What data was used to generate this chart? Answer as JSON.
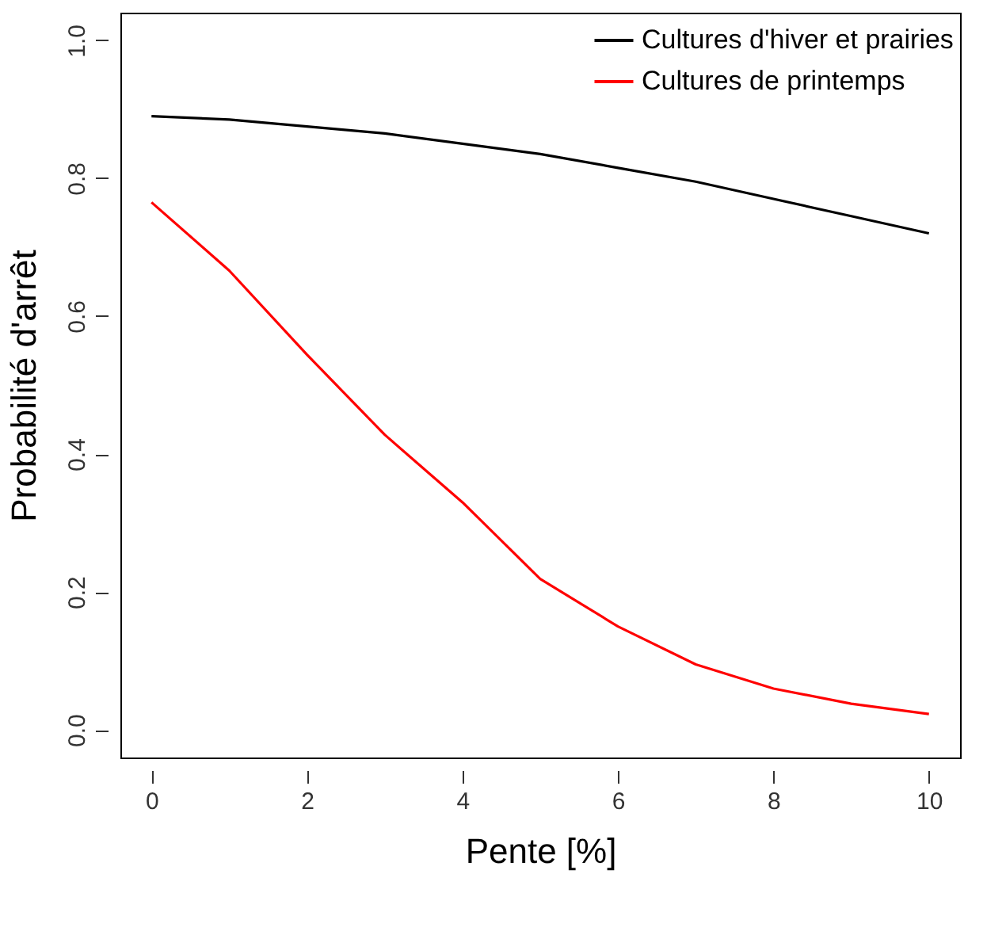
{
  "chart_data": {
    "type": "line",
    "xlabel": "Pente [%]",
    "ylabel": "Probabilité d'arrêt",
    "x": [
      0,
      1,
      2,
      3,
      4,
      5,
      6,
      7,
      8,
      9,
      10
    ],
    "series": [
      {
        "name": "Cultures d'hiver et prairies",
        "color": "#000000",
        "values": [
          0.89,
          0.885,
          0.875,
          0.865,
          0.85,
          0.835,
          0.815,
          0.795,
          0.77,
          0.745,
          0.72
        ]
      },
      {
        "name": "Cultures de printemps",
        "color": "#ff0000",
        "values": [
          0.765,
          0.666,
          0.544,
          0.428,
          0.33,
          0.219,
          0.15,
          0.095,
          0.06,
          0.038,
          0.023
        ]
      }
    ],
    "xlim": [
      -0.4,
      10.4
    ],
    "ylim": [
      -0.04,
      1.04
    ],
    "xticks": [
      0,
      2,
      4,
      6,
      8,
      10
    ],
    "yticks": [
      {
        "value": 0,
        "label": "0.0"
      },
      0.2,
      0.4,
      0.6,
      0.8,
      {
        "value": 1,
        "label": "1.0"
      }
    ],
    "grid": false,
    "legend": "top right",
    "marker": "none",
    "line_style": "solid"
  }
}
